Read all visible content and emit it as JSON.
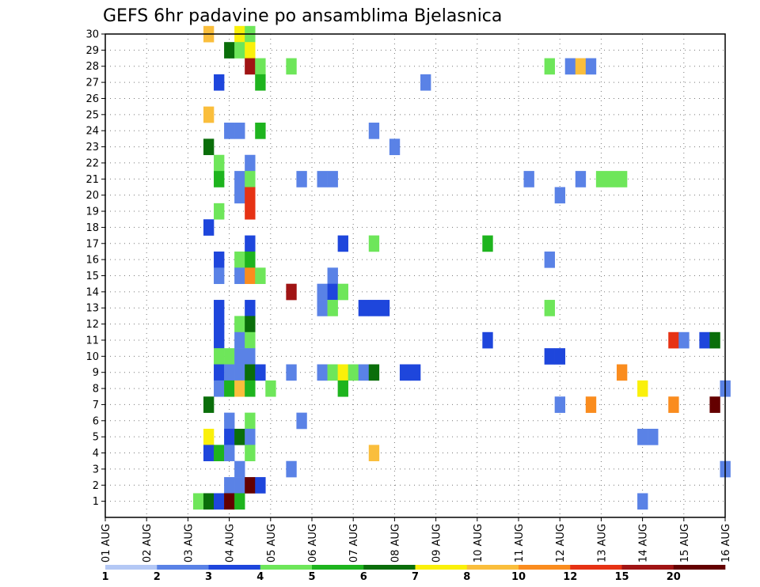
{
  "chart_data": {
    "type": "heatmap",
    "title": "GEFS 6hr padavine po ansamblima Bjelasnica",
    "y_ticks": [
      "1",
      "2",
      "3",
      "4",
      "5",
      "6",
      "7",
      "8",
      "9",
      "10",
      "11",
      "12",
      "13",
      "14",
      "15",
      "16",
      "17",
      "18",
      "19",
      "20",
      "21",
      "22",
      "23",
      "24",
      "25",
      "26",
      "27",
      "28",
      "29",
      "30"
    ],
    "x_ticks": [
      "01 AUG",
      "02 AUG",
      "03 AUG",
      "04 AUG",
      "05 AUG",
      "06 AUG",
      "07 AUG",
      "08 AUG",
      "09 AUG",
      "10 AUG",
      "11 AUG",
      "12 AUG",
      "13 AUG",
      "14 AUG",
      "15 AUG",
      "16 AUG"
    ],
    "x_range": [
      0,
      60
    ],
    "y_range": [
      0,
      30
    ],
    "grid": true,
    "color_scale": {
      "labels": [
        "1",
        "2",
        "3",
        "4",
        "5",
        "6",
        "7",
        "8",
        "10",
        "12",
        "15",
        "20"
      ],
      "colors": [
        "#b4c8f5",
        "#5a82e6",
        "#1e46dc",
        "#6ee65a",
        "#1eb41e",
        "#0a6e0a",
        "#faf00a",
        "#fabe3c",
        "#fa8c1e",
        "#e63214",
        "#a01414",
        "#640000"
      ]
    },
    "x_unit": "6-hour step from 01 AUG",
    "y_unit": "ensemble member",
    "cells": [
      [
        10,
        30,
        7
      ],
      [
        13,
        30,
        6
      ],
      [
        14,
        30,
        3
      ],
      [
        12,
        29,
        5
      ],
      [
        13,
        29,
        3
      ],
      [
        14,
        29,
        6
      ],
      [
        14,
        28,
        10
      ],
      [
        15,
        28,
        3
      ],
      [
        18,
        28,
        3
      ],
      [
        43,
        28,
        3
      ],
      [
        45,
        28,
        1
      ],
      [
        46,
        28,
        7
      ],
      [
        47,
        28,
        1
      ],
      [
        11,
        27,
        2
      ],
      [
        15,
        27,
        4
      ],
      [
        31,
        27,
        1
      ],
      [
        10,
        25,
        7
      ],
      [
        12,
        24,
        1
      ],
      [
        13,
        24,
        1
      ],
      [
        15,
        24,
        4
      ],
      [
        26,
        24,
        1
      ],
      [
        10,
        23,
        5
      ],
      [
        28,
        23,
        1
      ],
      [
        11,
        22,
        3
      ],
      [
        14,
        22,
        1
      ],
      [
        11,
        21,
        4
      ],
      [
        13,
        21,
        1
      ],
      [
        14,
        21,
        3
      ],
      [
        19,
        21,
        1
      ],
      [
        21,
        21,
        1
      ],
      [
        22,
        21,
        1
      ],
      [
        41,
        21,
        1
      ],
      [
        46,
        21,
        1
      ],
      [
        48,
        21,
        3
      ],
      [
        49,
        21,
        3
      ],
      [
        50,
        21,
        3
      ],
      [
        13,
        20,
        1
      ],
      [
        14,
        20,
        9
      ],
      [
        44,
        20,
        1
      ],
      [
        11,
        19,
        3
      ],
      [
        14,
        19,
        9
      ],
      [
        10,
        18,
        2
      ],
      [
        14,
        17,
        2
      ],
      [
        23,
        17,
        2
      ],
      [
        26,
        17,
        3
      ],
      [
        37,
        17,
        4
      ],
      [
        11,
        16,
        2
      ],
      [
        13,
        16,
        3
      ],
      [
        14,
        16,
        4
      ],
      [
        43,
        16,
        1
      ],
      [
        11,
        15,
        1
      ],
      [
        13,
        15,
        1
      ],
      [
        14,
        15,
        8
      ],
      [
        15,
        15,
        3
      ],
      [
        22,
        15,
        1
      ],
      [
        18,
        14,
        10
      ],
      [
        21,
        14,
        1
      ],
      [
        22,
        14,
        2
      ],
      [
        23,
        14,
        3
      ],
      [
        11,
        13,
        2
      ],
      [
        14,
        13,
        2
      ],
      [
        21,
        13,
        1
      ],
      [
        22,
        13,
        3
      ],
      [
        25,
        13,
        2
      ],
      [
        26,
        13,
        2
      ],
      [
        27,
        13,
        2
      ],
      [
        43,
        13,
        3
      ],
      [
        11,
        12,
        2
      ],
      [
        13,
        12,
        3
      ],
      [
        14,
        12,
        5
      ],
      [
        11,
        11,
        2
      ],
      [
        13,
        11,
        1
      ],
      [
        14,
        11,
        3
      ],
      [
        37,
        11,
        2
      ],
      [
        55,
        11,
        9
      ],
      [
        56,
        11,
        1
      ],
      [
        58,
        11,
        2
      ],
      [
        59,
        11,
        5
      ],
      [
        11,
        10,
        3
      ],
      [
        12,
        10,
        3
      ],
      [
        13,
        10,
        1
      ],
      [
        14,
        10,
        1
      ],
      [
        43,
        10,
        2
      ],
      [
        44,
        10,
        2
      ],
      [
        11,
        9,
        2
      ],
      [
        12,
        9,
        1
      ],
      [
        13,
        9,
        1
      ],
      [
        14,
        9,
        5
      ],
      [
        15,
        9,
        2
      ],
      [
        18,
        9,
        1
      ],
      [
        21,
        9,
        1
      ],
      [
        22,
        9,
        3
      ],
      [
        23,
        9,
        6
      ],
      [
        24,
        9,
        3
      ],
      [
        25,
        9,
        1
      ],
      [
        26,
        9,
        5
      ],
      [
        29,
        9,
        2
      ],
      [
        30,
        9,
        2
      ],
      [
        50,
        9,
        8
      ],
      [
        11,
        8,
        1
      ],
      [
        12,
        8,
        4
      ],
      [
        13,
        8,
        7
      ],
      [
        14,
        8,
        4
      ],
      [
        16,
        8,
        3
      ],
      [
        23,
        8,
        4
      ],
      [
        52,
        8,
        6
      ],
      [
        60,
        8,
        1
      ],
      [
        10,
        7,
        5
      ],
      [
        44,
        7,
        1
      ],
      [
        47,
        7,
        8
      ],
      [
        55,
        7,
        8
      ],
      [
        59,
        7,
        11
      ],
      [
        12,
        6,
        1
      ],
      [
        14,
        6,
        3
      ],
      [
        19,
        6,
        1
      ],
      [
        10,
        5,
        6
      ],
      [
        12,
        5,
        2
      ],
      [
        13,
        5,
        5
      ],
      [
        14,
        5,
        1
      ],
      [
        52,
        5,
        1
      ],
      [
        53,
        5,
        1
      ],
      [
        10,
        4,
        2
      ],
      [
        11,
        4,
        4
      ],
      [
        12,
        4,
        1
      ],
      [
        14,
        4,
        3
      ],
      [
        26,
        4,
        7
      ],
      [
        13,
        3,
        1
      ],
      [
        18,
        3,
        1
      ],
      [
        60,
        3,
        1
      ],
      [
        12,
        2,
        1
      ],
      [
        13,
        2,
        1
      ],
      [
        14,
        2,
        11
      ],
      [
        15,
        2,
        2
      ],
      [
        9,
        1,
        3
      ],
      [
        10,
        1,
        5
      ],
      [
        11,
        1,
        2
      ],
      [
        12,
        1,
        11
      ],
      [
        13,
        1,
        4
      ],
      [
        52,
        1,
        1
      ]
    ]
  }
}
